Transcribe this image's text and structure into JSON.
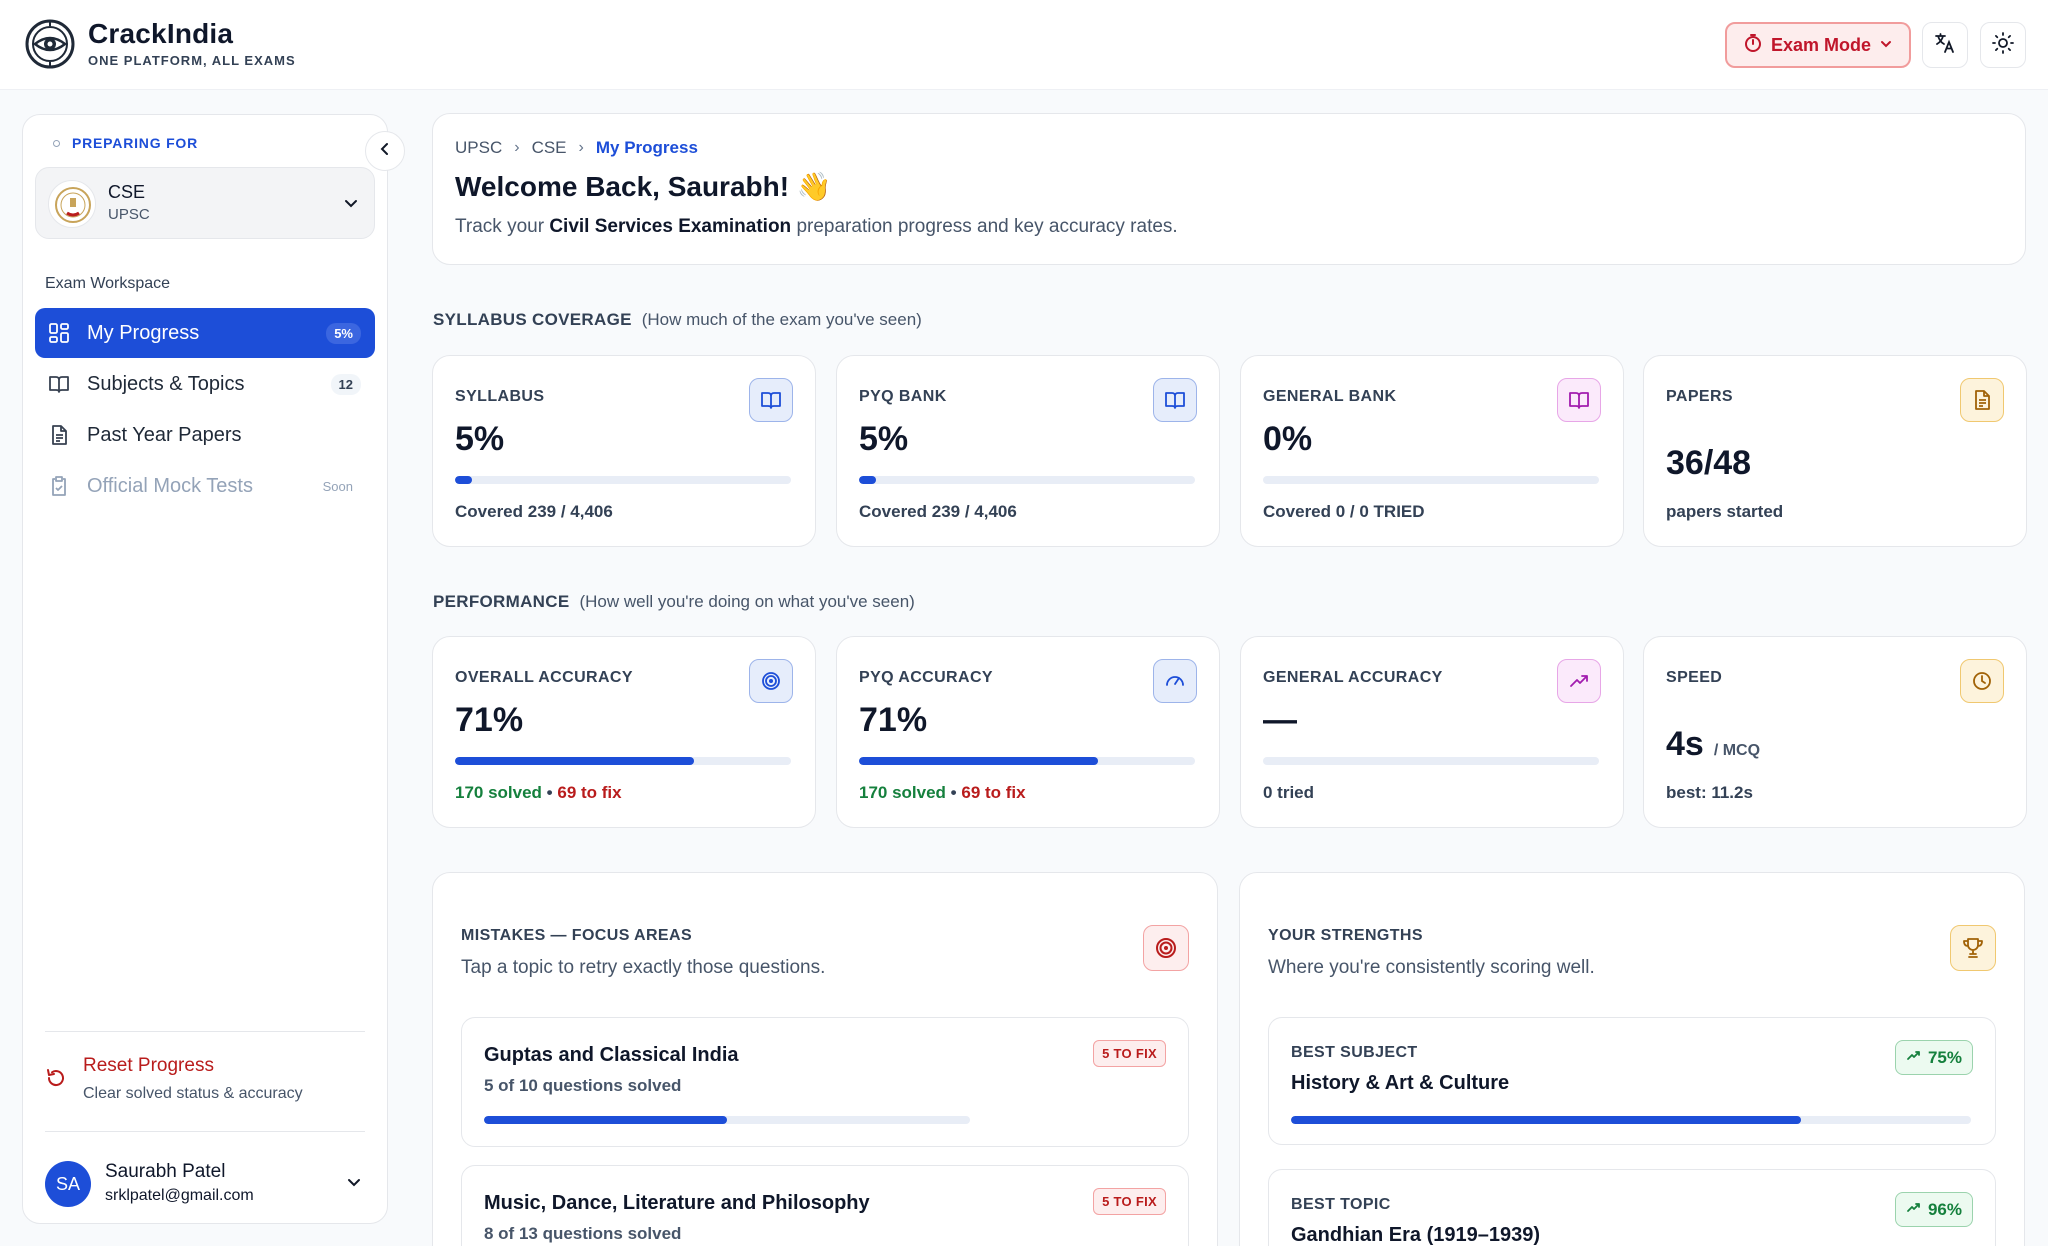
{
  "brand": {
    "name": "CrackIndia",
    "tagline": "ONE PLATFORM, ALL EXAMS"
  },
  "header": {
    "exam_mode_label": "Exam Mode"
  },
  "sidebar": {
    "preparing_label": "PREPARING FOR",
    "exam": {
      "name": "CSE",
      "body": "UPSC"
    },
    "workspace_label": "Exam Workspace",
    "items": [
      {
        "label": "My Progress",
        "badge": "5%"
      },
      {
        "label": "Subjects & Topics",
        "badge": "12"
      },
      {
        "label": "Past Year Papers",
        "badge": ""
      },
      {
        "label": "Official Mock Tests",
        "badge": "Soon"
      }
    ],
    "reset": {
      "title": "Reset Progress",
      "subtitle": "Clear solved status & accuracy"
    },
    "user": {
      "initials": "SA",
      "name": "Saurabh Patel",
      "email": "srklpatel@gmail.com"
    }
  },
  "welcome": {
    "breadcrumb": [
      "UPSC",
      "CSE",
      "My Progress"
    ],
    "title": "Welcome Back, Saurabh! 👋",
    "subtitle_prefix": "Track your ",
    "subtitle_bold": "Civil Services Examination",
    "subtitle_suffix": " preparation progress and key accuracy rates."
  },
  "syllabus_section": {
    "title": "SYLLABUS COVERAGE",
    "hint": "(How much of the exam you've seen)",
    "cards": [
      {
        "label": "SYLLABUS",
        "value": "5%",
        "progress": 0.05,
        "footer": "Covered 239 / 4,406"
      },
      {
        "label": "PYQ BANK",
        "value": "5%",
        "progress": 0.05,
        "footer": "Covered 239 / 4,406"
      },
      {
        "label": "GENERAL BANK",
        "value": "0%",
        "progress": 0,
        "footer": "Covered 0 / 0 TRIED"
      },
      {
        "label": "PAPERS",
        "value": "36/48",
        "footer": "papers started"
      }
    ]
  },
  "performance_section": {
    "title": "PERFORMANCE",
    "hint": "(How well you're doing on what you've seen)",
    "cards": [
      {
        "label": "OVERALL ACCURACY",
        "value": "71%",
        "progress": 0.71,
        "solved": "170 solved",
        "sep": " • ",
        "fix": "69 to fix"
      },
      {
        "label": "PYQ ACCURACY",
        "value": "71%",
        "progress": 0.71,
        "solved": "170 solved",
        "sep": " • ",
        "fix": "69 to fix"
      },
      {
        "label": "GENERAL ACCURACY",
        "value": "—",
        "progress": 0,
        "footer": "0 tried"
      },
      {
        "label": "SPEED",
        "value": "4s",
        "unit": "/ MCQ",
        "footer": "best: 11.2s"
      }
    ]
  },
  "mistakes": {
    "title": "MISTAKES — FOCUS AREAS",
    "subtitle": "Tap a topic to retry exactly those questions.",
    "topics": [
      {
        "title": "Guptas and Classical India",
        "solved": "5 of 10 questions solved",
        "badge": "5 TO FIX",
        "progress": 0.5
      },
      {
        "title": "Music, Dance, Literature and Philosophy",
        "solved": "8 of 13 questions solved",
        "badge": "5 TO FIX",
        "progress": 0.615
      }
    ]
  },
  "strengths": {
    "title": "YOUR STRENGTHS",
    "subtitle": "Where you're consistently scoring well.",
    "items": [
      {
        "label": "BEST SUBJECT",
        "title": "History & Art & Culture",
        "badge": "75%",
        "progress": 0.75
      },
      {
        "label": "BEST TOPIC",
        "title": "Gandhian Era (1919–1939)",
        "badge": "96%",
        "progress": 0.96
      }
    ]
  },
  "colors": {
    "accent": "#1d4ed8",
    "danger": "#b91c1c",
    "success": "#15803d"
  }
}
